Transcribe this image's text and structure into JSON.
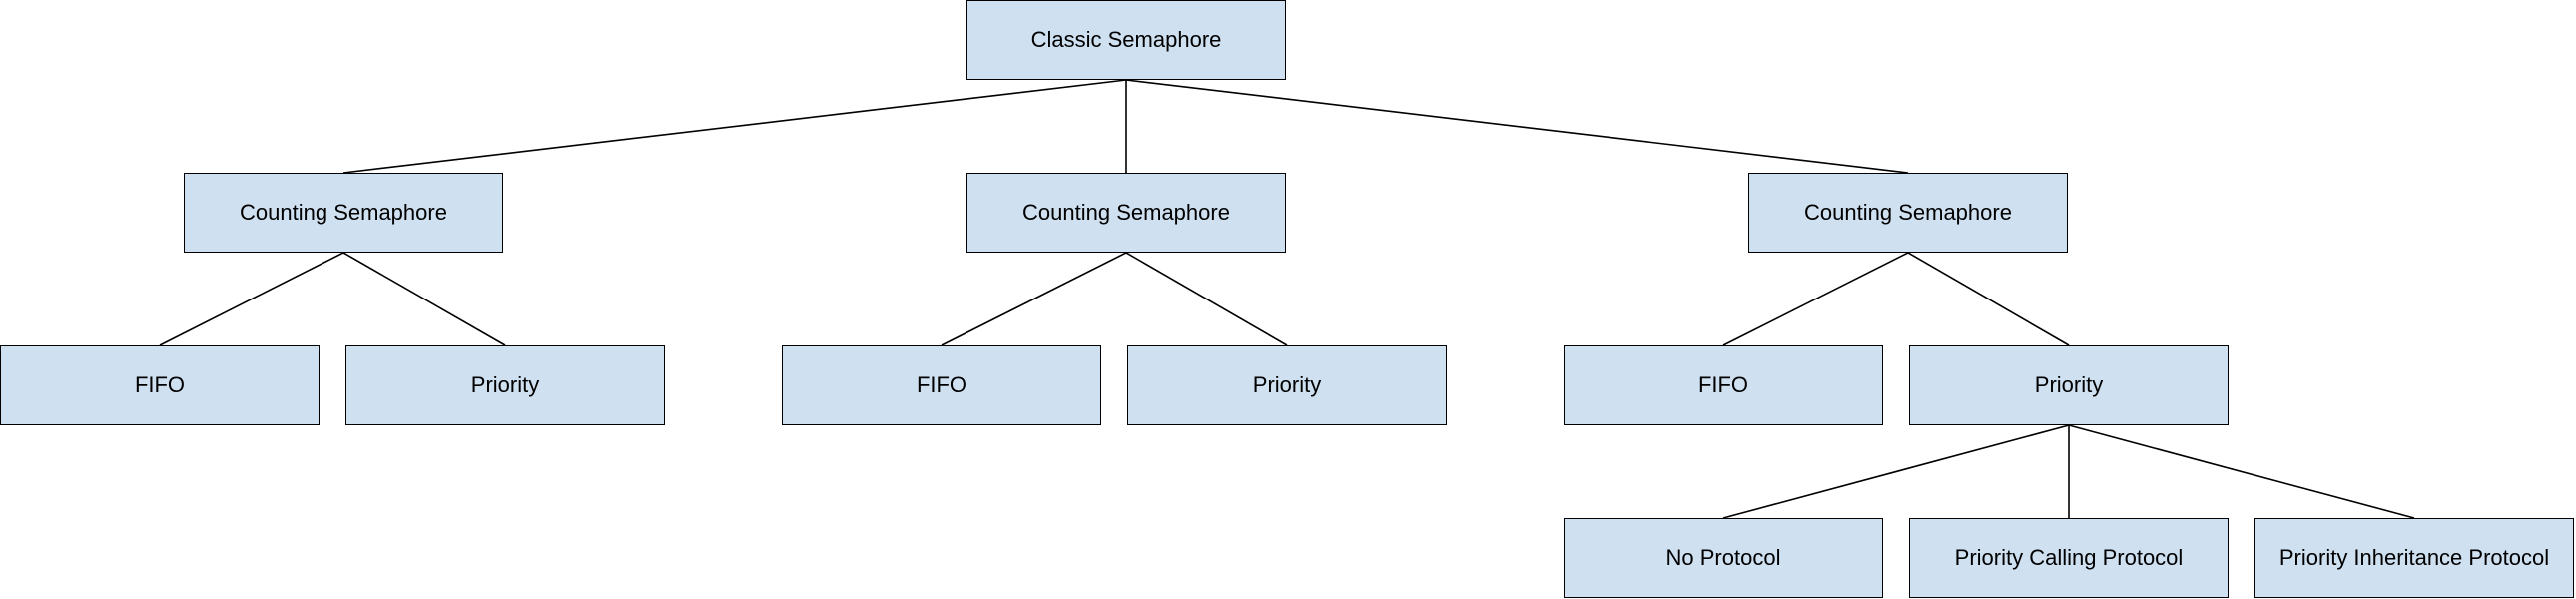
{
  "diagram": {
    "root": {
      "label": "Classic Semaphore"
    },
    "counting_1": {
      "label": "Counting Semaphore"
    },
    "counting_2": {
      "label": "Counting Semaphore"
    },
    "counting_3": {
      "label": "Counting Semaphore"
    },
    "fifo_1": {
      "label": "FIFO"
    },
    "priority_1": {
      "label": "Priority"
    },
    "fifo_2": {
      "label": "FIFO"
    },
    "priority_2": {
      "label": "Priority"
    },
    "fifo_3": {
      "label": "FIFO"
    },
    "priority_3": {
      "label": "Priority"
    },
    "no_protocol": {
      "label": "No Protocol"
    },
    "priority_calling": {
      "label": "Priority Calling Protocol"
    },
    "priority_inheritance": {
      "label": "Priority Inheritance Protocol"
    }
  },
  "style": {
    "node_fill": "#cfe0f1",
    "node_border": "#000000",
    "line_color": "#000000"
  }
}
